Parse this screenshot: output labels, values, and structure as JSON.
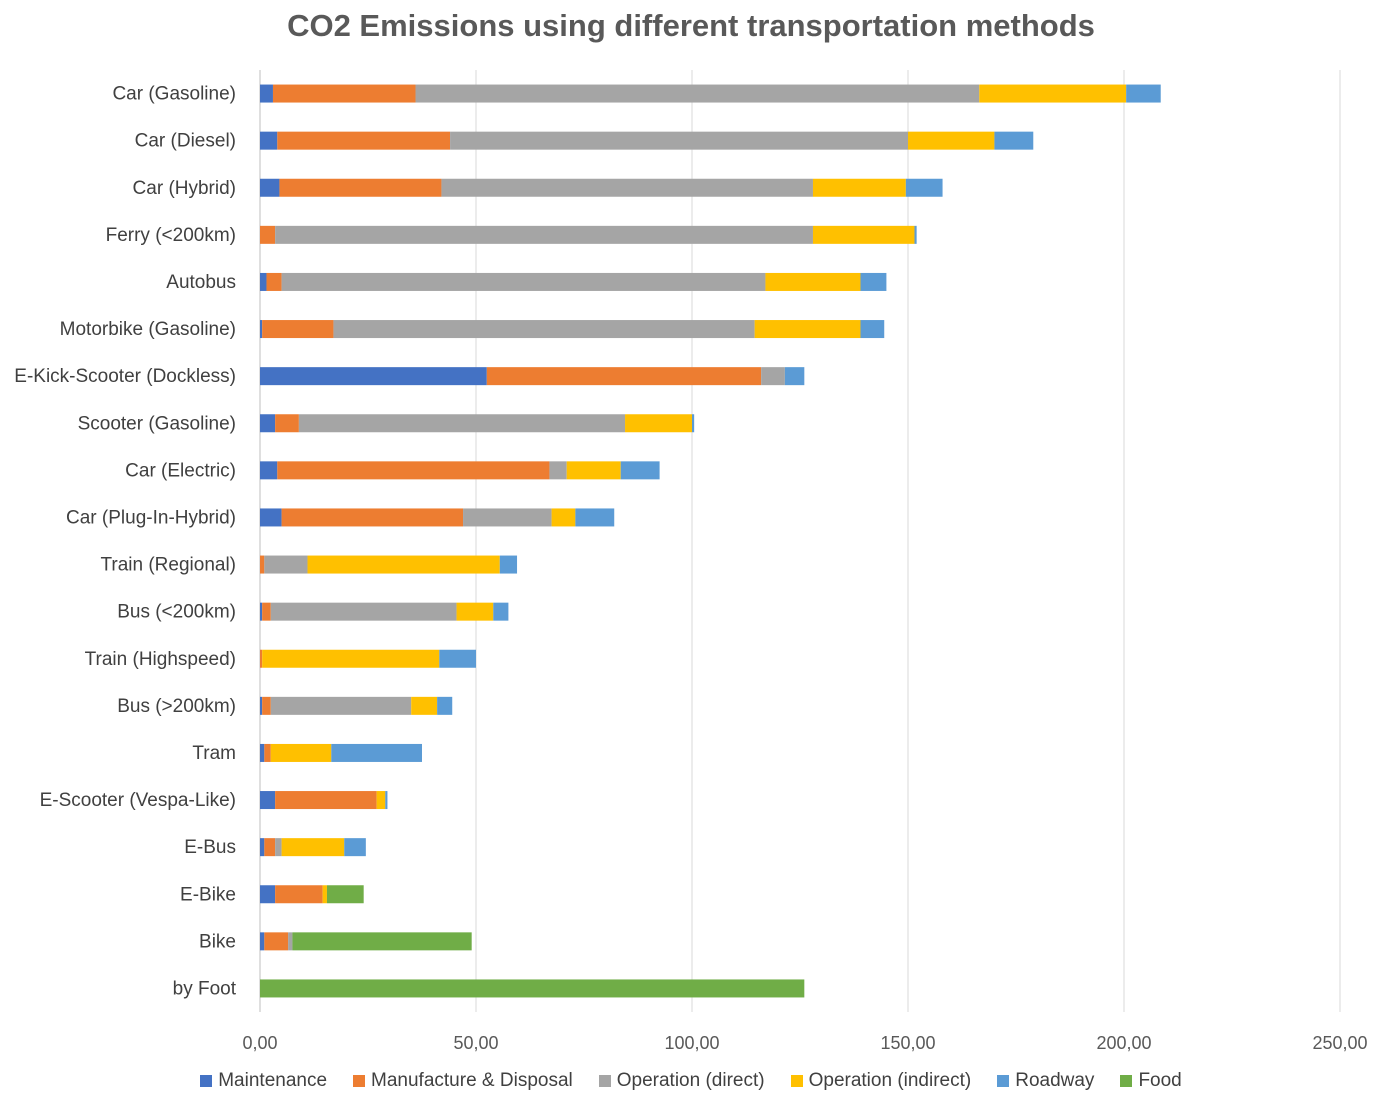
{
  "chart_data": {
    "type": "bar",
    "orientation": "horizontal",
    "stacked": true,
    "title": "CO2 Emissions using different transportation methods",
    "xlabel": "",
    "ylabel": "",
    "xlim": [
      0,
      250
    ],
    "x_ticks": [
      "0,00",
      "50,00",
      "100,00",
      "150,00",
      "200,00",
      "250,00"
    ],
    "grid": true,
    "legend_position": "bottom",
    "categories": [
      "Car (Gasoline)",
      "Car (Diesel)",
      "Car (Hybrid)",
      "Ferry (<200km)",
      "Autobus",
      "Motorbike (Gasoline)",
      "E-Kick-Scooter (Dockless)",
      "Scooter (Gasoline)",
      "Car (Electric)",
      "Car (Plug-In-Hybrid)",
      "Train (Regional)",
      "Bus (<200km)",
      "Train (Highspeed)",
      "Bus (>200km)",
      "Tram",
      "E-Scooter (Vespa-Like)",
      "E-Bus",
      "E-Bike",
      "Bike",
      "by Foot"
    ],
    "series": [
      {
        "name": "Maintenance",
        "color": "#4472c4",
        "values": [
          3,
          4,
          4.5,
          0,
          1.5,
          0.5,
          52.5,
          3.5,
          4,
          5,
          0,
          0.5,
          0,
          0.5,
          1,
          3.5,
          1,
          3.5,
          1,
          0
        ]
      },
      {
        "name": "Manufacture & Disposal",
        "color": "#ed7d31",
        "values": [
          33,
          40,
          37.5,
          3.5,
          3.5,
          16.5,
          63.5,
          5.5,
          63,
          42,
          1,
          2,
          0.5,
          2,
          1.5,
          23.5,
          2.5,
          11,
          5.5,
          0
        ]
      },
      {
        "name": "Operation (direct)",
        "color": "#a5a5a5",
        "values": [
          130.5,
          106,
          86,
          124.5,
          112,
          97.5,
          5.5,
          75.5,
          4,
          20.5,
          10,
          43,
          0,
          32.5,
          0,
          0,
          1.5,
          0,
          1,
          0
        ]
      },
      {
        "name": "Operation (indirect)",
        "color": "#ffc000",
        "values": [
          34,
          20,
          21.5,
          23.5,
          22,
          24.5,
          0,
          15.5,
          12.5,
          5.5,
          44.5,
          8.5,
          41,
          6,
          14,
          2,
          14.5,
          1,
          0,
          0
        ]
      },
      {
        "name": "Roadway",
        "color": "#5b9bd5",
        "values": [
          8,
          9,
          8.5,
          0.5,
          6,
          5.5,
          4.5,
          0.5,
          9,
          9,
          4,
          3.5,
          8.5,
          3.5,
          21,
          0.5,
          5,
          0,
          0,
          0
        ]
      },
      {
        "name": "Food",
        "color": "#70ad47",
        "values": [
          0,
          0,
          0,
          0,
          0,
          0,
          0,
          0,
          0,
          0,
          0,
          0,
          0,
          0,
          0,
          0,
          0,
          8.5,
          41.5,
          126
        ]
      }
    ]
  }
}
